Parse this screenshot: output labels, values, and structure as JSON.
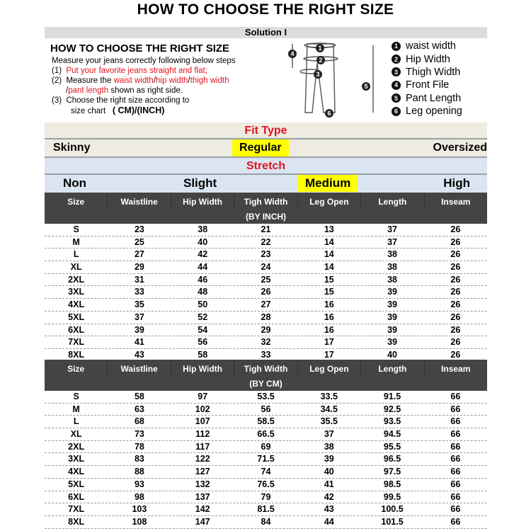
{
  "title": "HOW TO CHOOSE THE RIGHT SIZE",
  "solution": "Solution I",
  "instructions": {
    "heading": "HOW TO CHOOSE THE RIGHT SIZE",
    "intro": "Measure your jeans correctly following below steps",
    "step1_num": "(1)",
    "step1": "Put your favorite jeans straight and flat;",
    "step2_num": "(2)",
    "step2_a": "Measure the ",
    "step2_waist": "waist width",
    "slash": "/",
    "step2_hip": "hip width",
    "step2_thigh": "thigh width",
    "step2_length": "pant length",
    "step2_b": " shown as right side.",
    "step3_num": "(3)",
    "step3_a": "Choose the right size according to",
    "step3_b": "size chart",
    "step3_units": "( CM)/(INCH)"
  },
  "legend": [
    {
      "n": "1",
      "label": "waist width"
    },
    {
      "n": "2",
      "label": "Hip Width"
    },
    {
      "n": "3",
      "label": "Thigh Width"
    },
    {
      "n": "4",
      "label": "Front File"
    },
    {
      "n": "5",
      "label": "Pant Length"
    },
    {
      "n": "6",
      "label": "Leg opening"
    }
  ],
  "fit_type": {
    "label": "Fit Type",
    "options": [
      "Skinny",
      "Regular",
      "Oversized"
    ],
    "selected": "Regular"
  },
  "stretch": {
    "label": "Stretch",
    "options": [
      "Non",
      "Slight",
      "Medium",
      "High"
    ],
    "selected": "Medium"
  },
  "colors": {
    "highlight": "#ffff00",
    "accent_red": "#e0141e",
    "header_dark": "#444444"
  },
  "columns": [
    "Size",
    "Waistline",
    "Hip Width",
    "Tigh Width",
    "Leg Open",
    "Length",
    "Inseam"
  ],
  "inch_table": {
    "unit": "(BY INCH)",
    "rows": [
      [
        "S",
        "23",
        "38",
        "21",
        "13",
        "37",
        "26"
      ],
      [
        "M",
        "25",
        "40",
        "22",
        "14",
        "37",
        "26"
      ],
      [
        "L",
        "27",
        "42",
        "23",
        "14",
        "38",
        "26"
      ],
      [
        "XL",
        "29",
        "44",
        "24",
        "14",
        "38",
        "26"
      ],
      [
        "2XL",
        "31",
        "46",
        "25",
        "15",
        "38",
        "26"
      ],
      [
        "3XL",
        "33",
        "48",
        "26",
        "15",
        "39",
        "26"
      ],
      [
        "4XL",
        "35",
        "50",
        "27",
        "16",
        "39",
        "26"
      ],
      [
        "5XL",
        "37",
        "52",
        "28",
        "16",
        "39",
        "26"
      ],
      [
        "6XL",
        "39",
        "54",
        "29",
        "16",
        "39",
        "26"
      ],
      [
        "7XL",
        "41",
        "56",
        "32",
        "17",
        "39",
        "26"
      ],
      [
        "8XL",
        "43",
        "58",
        "33",
        "17",
        "40",
        "26"
      ]
    ]
  },
  "cm_table": {
    "unit": "(BY CM)",
    "rows": [
      [
        "S",
        "58",
        "97",
        "53.5",
        "33.5",
        "91.5",
        "66"
      ],
      [
        "M",
        "63",
        "102",
        "56",
        "34.5",
        "92.5",
        "66"
      ],
      [
        "L",
        "68",
        "107",
        "58.5",
        "35.5",
        "93.5",
        "66"
      ],
      [
        "XL",
        "73",
        "112",
        "66.5",
        "37",
        "94.5",
        "66"
      ],
      [
        "2XL",
        "78",
        "117",
        "69",
        "38",
        "95.5",
        "66"
      ],
      [
        "3XL",
        "83",
        "122",
        "71.5",
        "39",
        "96.5",
        "66"
      ],
      [
        "4XL",
        "88",
        "127",
        "74",
        "40",
        "97.5",
        "66"
      ],
      [
        "5XL",
        "93",
        "132",
        "76.5",
        "41",
        "98.5",
        "66"
      ],
      [
        "6XL",
        "98",
        "137",
        "79",
        "42",
        "99.5",
        "66"
      ],
      [
        "7XL",
        "103",
        "142",
        "81.5",
        "43",
        "100.5",
        "66"
      ],
      [
        "8XL",
        "108",
        "147",
        "84",
        "44",
        "101.5",
        "66"
      ]
    ]
  }
}
